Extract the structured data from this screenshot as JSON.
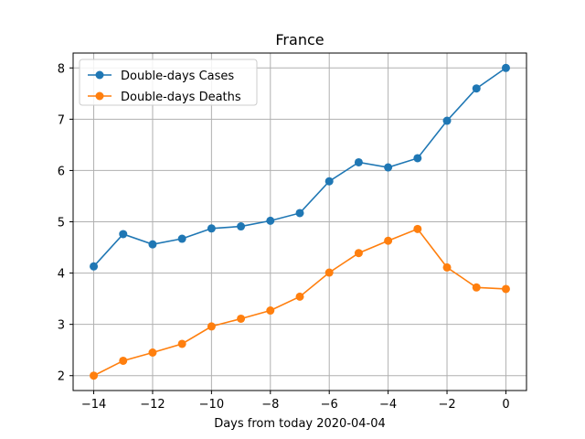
{
  "chart_data": {
    "type": "line",
    "title": "France",
    "xlabel": "Days from today 2020-04-04",
    "ylabel": "",
    "x": [
      -14,
      -13,
      -12,
      -11,
      -10,
      -9,
      -8,
      -7,
      -6,
      -5,
      -4,
      -3,
      -2,
      -1,
      0
    ],
    "xlim": [
      -14.7,
      0.7
    ],
    "ylim": [
      1.71,
      8.29
    ],
    "xticks": [
      -14,
      -12,
      -10,
      -8,
      -6,
      -4,
      -2,
      0
    ],
    "xtick_labels": [
      "−14",
      "−12",
      "−10",
      "−8",
      "−6",
      "−4",
      "−2",
      "0"
    ],
    "yticks": [
      2,
      3,
      4,
      5,
      6,
      7,
      8
    ],
    "ytick_labels": [
      "2",
      "3",
      "4",
      "5",
      "6",
      "7",
      "8"
    ],
    "grid": true,
    "legend_position": "upper-left",
    "series": [
      {
        "name": "Double-days Cases",
        "color": "#1f77b4",
        "values": [
          4.13,
          4.76,
          4.56,
          4.67,
          4.87,
          4.91,
          5.02,
          5.17,
          5.79,
          6.16,
          6.06,
          6.24,
          6.97,
          7.6,
          8.0
        ]
      },
      {
        "name": "Double-days Deaths",
        "color": "#ff7f0e",
        "values": [
          2.0,
          2.29,
          2.45,
          2.62,
          2.96,
          3.11,
          3.27,
          3.54,
          4.01,
          4.39,
          4.63,
          4.86,
          4.11,
          3.72,
          3.69
        ]
      }
    ]
  }
}
